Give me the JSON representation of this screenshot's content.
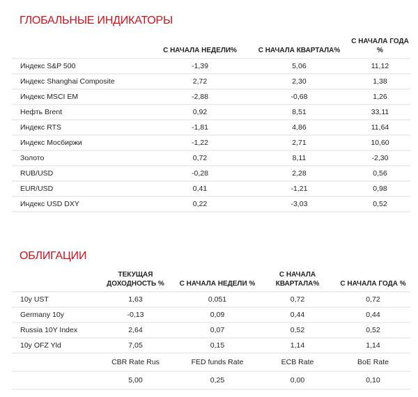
{
  "global": {
    "title": "ГЛОБАЛЬНЫЕ ИНДИКАТОРЫ",
    "headers": [
      "",
      "С НАЧАЛА НЕДЕЛИ%",
      "С НАЧАЛА КВАРТАЛА%",
      "С НАЧАЛА ГОДА %"
    ],
    "rows": [
      [
        "Индекс S&P 500",
        "-1,39",
        "5,06",
        "11,12"
      ],
      [
        "Индекс Shanghai Composite",
        "2,72",
        "2,30",
        "1,38"
      ],
      [
        "Индекс MSCI EM",
        "-2,88",
        "-0,68",
        "1,26"
      ],
      [
        "Нефть Brent",
        "0,92",
        "8,51",
        "33,11"
      ],
      [
        "Индекс RTS",
        "-1,81",
        "4,86",
        "11,64"
      ],
      [
        "Индекс Мосбиржи",
        "-1,22",
        "2,71",
        "10,60"
      ],
      [
        "Золото",
        "0,72",
        "8,11",
        "-2,30"
      ],
      [
        "RUB/USD",
        "-0,28",
        "2,28",
        "0,56"
      ],
      [
        "EUR/USD",
        "0,41",
        "-1,21",
        "0,98"
      ],
      [
        "Индекс USD DXY",
        "0,22",
        "-3,03",
        "0,52"
      ]
    ]
  },
  "bonds": {
    "title": "ОБЛИГАЦИИ",
    "headers": [
      "",
      "ТЕКУЩАЯ ДОХОДНОСТЬ %",
      "С НАЧАЛА НЕДЕЛИ %",
      "С НАЧАЛА КВАРТАЛА%",
      "С НАЧАЛА ГОДА %"
    ],
    "rows": [
      [
        "10y UST",
        "1,63",
        "0,051",
        "0,72",
        "0,72"
      ],
      [
        "Germany 10y",
        "-0,13",
        "0,09",
        "0,44",
        "0,44"
      ],
      [
        "Russia 10Y Index",
        "2,64",
        "0,07",
        "0,52",
        "0,52"
      ],
      [
        "10y OFZ Yld",
        "7,05",
        "0,15",
        "1,14",
        "1,14"
      ]
    ],
    "rate_labels": [
      "",
      "CBR Rate Rus",
      "FED funds Rate",
      "ECB Rate",
      "BoE Rate"
    ],
    "rate_values": [
      "",
      "5,00",
      "0,25",
      "0,00",
      "0,10"
    ]
  }
}
